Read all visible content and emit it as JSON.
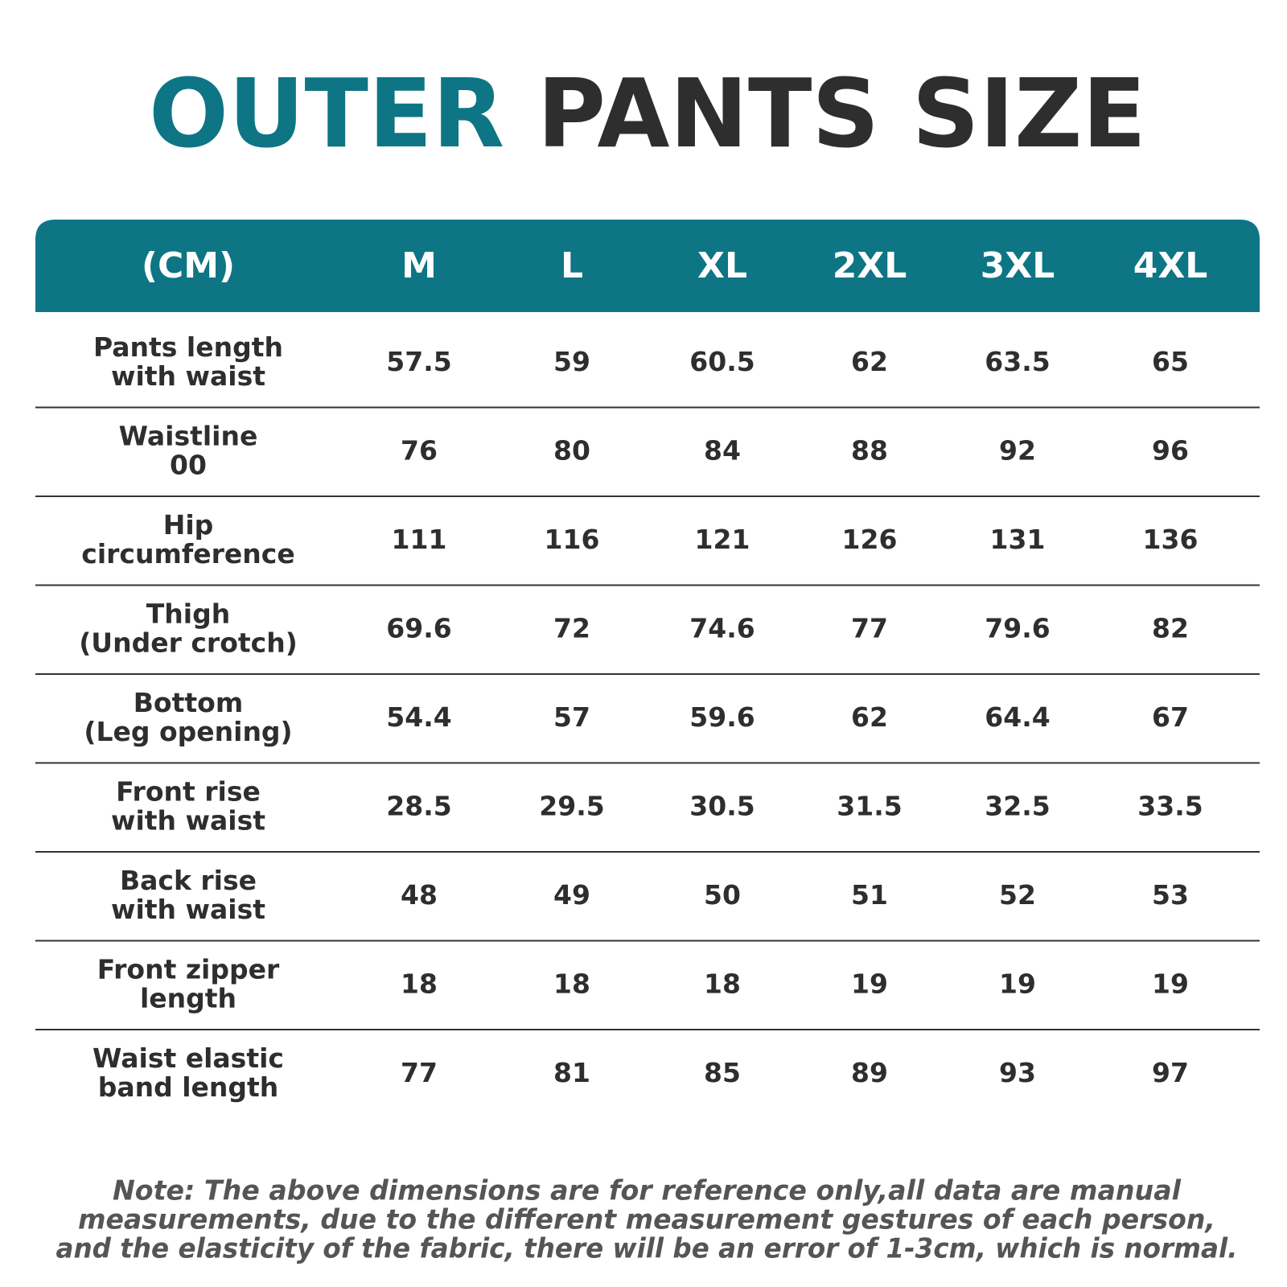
{
  "title": {
    "accent": "OUTER",
    "rest": "PANTS SIZE"
  },
  "table": {
    "header": [
      "(CM)",
      "M",
      "L",
      "XL",
      "2XL",
      "3XL",
      "4XL"
    ],
    "rows": [
      [
        [
          "Pants length",
          "with waist"
        ],
        57.5,
        59,
        60.5,
        62,
        63.5,
        65
      ],
      [
        [
          "Waistline",
          "00"
        ],
        76,
        80,
        84,
        88,
        92,
        96
      ],
      [
        [
          "Hip",
          "circumference"
        ],
        111,
        116,
        121,
        126,
        131,
        136
      ],
      [
        [
          "Thigh",
          "(Under crotch)"
        ],
        69.6,
        72,
        74.6,
        77,
        79.6,
        82
      ],
      [
        [
          "Bottom",
          "(Leg opening)"
        ],
        54.4,
        57,
        59.6,
        62,
        64.4,
        67
      ],
      [
        [
          "Front rise",
          "with waist"
        ],
        28.5,
        29.5,
        30.5,
        31.5,
        32.5,
        33.5
      ],
      [
        [
          "Back rise",
          "with waist"
        ],
        48,
        49,
        50,
        51,
        52,
        53
      ],
      [
        [
          "Front zipper",
          "length"
        ],
        18,
        18,
        18,
        19,
        19,
        19
      ],
      [
        [
          "Waist elastic",
          "band length"
        ],
        77,
        81,
        85,
        89,
        93,
        97
      ]
    ]
  },
  "note": [
    "Note: The above dimensions are for reference only,all data are manual",
    "measurements, due to the different measurement gestures of each person,",
    "and the elasticity of the fabric, there will be an error of 1-3cm, which is normal."
  ]
}
